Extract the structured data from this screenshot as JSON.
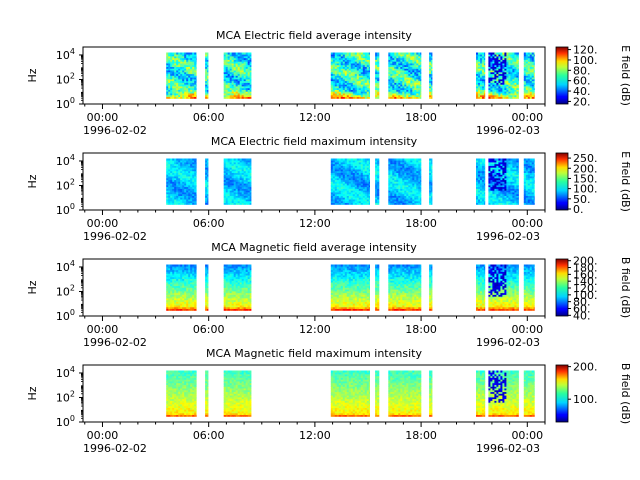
{
  "chart_data": [
    {
      "type": "heatmap",
      "title": "MCA  Electric field average intensity",
      "ylabel": "Hz",
      "y_scale": "log",
      "y_ticks": [
        {
          "base": "10",
          "exp": "0"
        },
        {
          "base": "10",
          "exp": "2"
        },
        {
          "base": "10",
          "exp": "4"
        }
      ],
      "x_ticks": [
        "00:00",
        "06:00",
        "12:00",
        "18:00",
        "00:00"
      ],
      "x_dates": [
        "1996-02-02",
        "1996-02-03"
      ],
      "colorbar": {
        "label": "E field (dB)",
        "range": [
          15,
          125
        ],
        "ticks": [
          "20.",
          "40.",
          "60.",
          "80.",
          "100.",
          "120."
        ]
      },
      "data_intervals_hours": [
        [
          3.6,
          5.3
        ],
        [
          5.8,
          5.97
        ],
        [
          6.85,
          8.4
        ],
        [
          12.9,
          15.1
        ],
        [
          15.4,
          15.62
        ],
        [
          16.15,
          18.0
        ],
        [
          18.45,
          18.62
        ],
        [
          21.1,
          21.6
        ],
        [
          21.8,
          23.5
        ],
        [
          23.8,
          24.4
        ]
      ]
    },
    {
      "type": "heatmap",
      "title": "MCA  Electric field maximum intensity",
      "ylabel": "Hz",
      "y_scale": "log",
      "y_ticks": [
        {
          "base": "10",
          "exp": "0"
        },
        {
          "base": "10",
          "exp": "2"
        },
        {
          "base": "10",
          "exp": "4"
        }
      ],
      "x_ticks": [
        "00:00",
        "06:00",
        "12:00",
        "18:00",
        "00:00"
      ],
      "x_dates": [
        "1996-02-02",
        "1996-02-03"
      ],
      "colorbar": {
        "label": "E field (dB)",
        "range": [
          -5,
          275
        ],
        "ticks": [
          "0.",
          "50.",
          "100.",
          "150.",
          "200.",
          "250."
        ]
      },
      "data_intervals_hours": [
        [
          3.6,
          5.3
        ],
        [
          5.8,
          5.97
        ],
        [
          6.85,
          8.4
        ],
        [
          12.9,
          15.1
        ],
        [
          15.4,
          15.62
        ],
        [
          16.15,
          18.0
        ],
        [
          18.45,
          18.62
        ],
        [
          21.1,
          21.6
        ],
        [
          21.8,
          23.5
        ],
        [
          23.8,
          24.4
        ]
      ]
    },
    {
      "type": "heatmap",
      "title": "MCA  Magnetic field average intensity",
      "ylabel": "Hz",
      "y_scale": "log",
      "y_ticks": [
        {
          "base": "10",
          "exp": "0"
        },
        {
          "base": "10",
          "exp": "2"
        },
        {
          "base": "10",
          "exp": "4"
        }
      ],
      "x_ticks": [
        "00:00",
        "06:00",
        "12:00",
        "18:00",
        "00:00"
      ],
      "x_dates": [
        "1996-02-02",
        "1996-02-03"
      ],
      "colorbar": {
        "label": "B field (dB)",
        "range": [
          38,
          205
        ],
        "ticks": [
          "40.",
          "60.",
          "80.",
          "100.",
          "120.",
          "140.",
          "160.",
          "180.",
          "200."
        ]
      },
      "data_intervals_hours": [
        [
          3.6,
          5.3
        ],
        [
          5.8,
          5.97
        ],
        [
          6.85,
          8.4
        ],
        [
          12.9,
          15.1
        ],
        [
          15.4,
          15.62
        ],
        [
          16.15,
          18.0
        ],
        [
          18.45,
          18.62
        ],
        [
          21.1,
          21.6
        ],
        [
          21.8,
          23.5
        ],
        [
          23.8,
          24.4
        ]
      ]
    },
    {
      "type": "heatmap",
      "title": "MCA  Magnetic field maximum intensity",
      "ylabel": "Hz",
      "y_scale": "log",
      "y_ticks": [
        {
          "base": "10",
          "exp": "0"
        },
        {
          "base": "10",
          "exp": "2"
        },
        {
          "base": "10",
          "exp": "4"
        }
      ],
      "x_ticks": [
        "00:00",
        "06:00",
        "12:00",
        "18:00",
        "00:00"
      ],
      "x_dates": [
        "1996-02-02",
        "1996-02-03"
      ],
      "colorbar": {
        "label": "B field (dB)",
        "range": [
          30,
          205
        ],
        "ticks": [
          "100.",
          "200."
        ]
      },
      "data_intervals_hours": [
        [
          3.6,
          5.3
        ],
        [
          5.8,
          5.97
        ],
        [
          6.85,
          8.4
        ],
        [
          12.9,
          15.1
        ],
        [
          15.4,
          15.62
        ],
        [
          16.15,
          18.0
        ],
        [
          18.45,
          18.62
        ],
        [
          21.1,
          21.6
        ],
        [
          21.8,
          23.5
        ],
        [
          23.8,
          24.4
        ]
      ]
    }
  ]
}
